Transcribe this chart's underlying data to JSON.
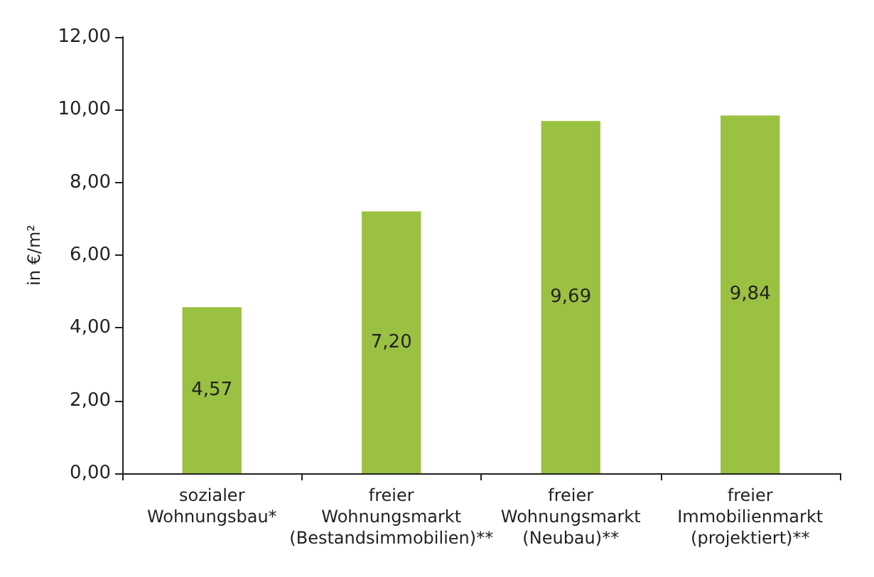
{
  "chart_data": {
    "type": "bar",
    "ylabel": "in €/m²",
    "categories": [
      "sozialer\nWohnungsbau*",
      "freier\nWohnungsmarkt\n(Bestandsimmobilien)**",
      "freier\nWohnungsmarkt\n(Neubau)**",
      "freier\nImmobilienmarkt\n(projektiert)**"
    ],
    "values": [
      4.57,
      7.2,
      9.69,
      9.84
    ],
    "value_labels": [
      "4,57",
      "7,20",
      "9,69",
      "9,84"
    ],
    "color": "#9bc142",
    "ylim": [
      0,
      12
    ],
    "yticks": [
      {
        "value": 0,
        "label": "0,00"
      },
      {
        "value": 2,
        "label": "2,00"
      },
      {
        "value": 4,
        "label": "4,00"
      },
      {
        "value": 6,
        "label": "6,00"
      },
      {
        "value": 8,
        "label": "8,00"
      },
      {
        "value": 10,
        "label": "10,00"
      },
      {
        "value": 12,
        "label": "12,00"
      }
    ],
    "grid": false
  }
}
